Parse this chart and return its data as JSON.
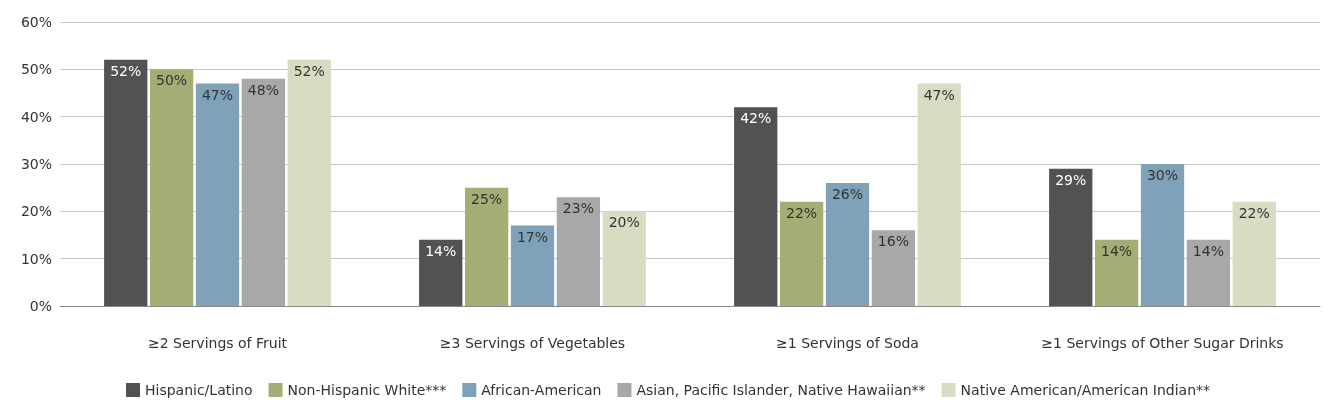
{
  "chart_data": {
    "type": "bar",
    "categories": [
      "≥2 Servings of Fruit",
      "≥3 Servings of Vegetables",
      "≥1 Servings of Soda",
      "≥1 Servings of Other Sugar Drinks"
    ],
    "series": [
      {
        "name": "Hispanic/Latino",
        "color": "#525254",
        "values": [
          52,
          14,
          42,
          29
        ],
        "value_labels": [
          "52%",
          "14%",
          "42%",
          "29%"
        ]
      },
      {
        "name": "Non-Hispanic White***",
        "color": "#a3ad74",
        "values": [
          50,
          25,
          22,
          14
        ],
        "value_labels": [
          "50%",
          "25%",
          "22%",
          "14%"
        ]
      },
      {
        "name": "African-American",
        "color": "#7fa2b8",
        "values": [
          47,
          17,
          26,
          30
        ],
        "value_labels": [
          "47%",
          "17%",
          "26%",
          "30%"
        ]
      },
      {
        "name": "Asian, Pacific Islander, Native Hawaiian**",
        "color": "#a8a8ab",
        "values": [
          48,
          23,
          16,
          14
        ],
        "value_labels": [
          "48%",
          "23%",
          "16%",
          "14%"
        ]
      },
      {
        "name": "Native American/American Indian**",
        "color": "#d8dcc2",
        "values": [
          52,
          20,
          47,
          22
        ],
        "value_labels": [
          "52%",
          "20%",
          "47%",
          "22%"
        ]
      }
    ],
    "ylim": [
      0,
      60
    ],
    "yticks": [
      {
        "value": 0,
        "label": "0%"
      },
      {
        "value": 10,
        "label": "10%"
      },
      {
        "value": 20,
        "label": "20%"
      },
      {
        "value": 30,
        "label": "30%"
      },
      {
        "value": 40,
        "label": "40%"
      },
      {
        "value": 50,
        "label": "50%"
      },
      {
        "value": 60,
        "label": "60%"
      }
    ],
    "grid": "y",
    "legend": "bottom"
  }
}
